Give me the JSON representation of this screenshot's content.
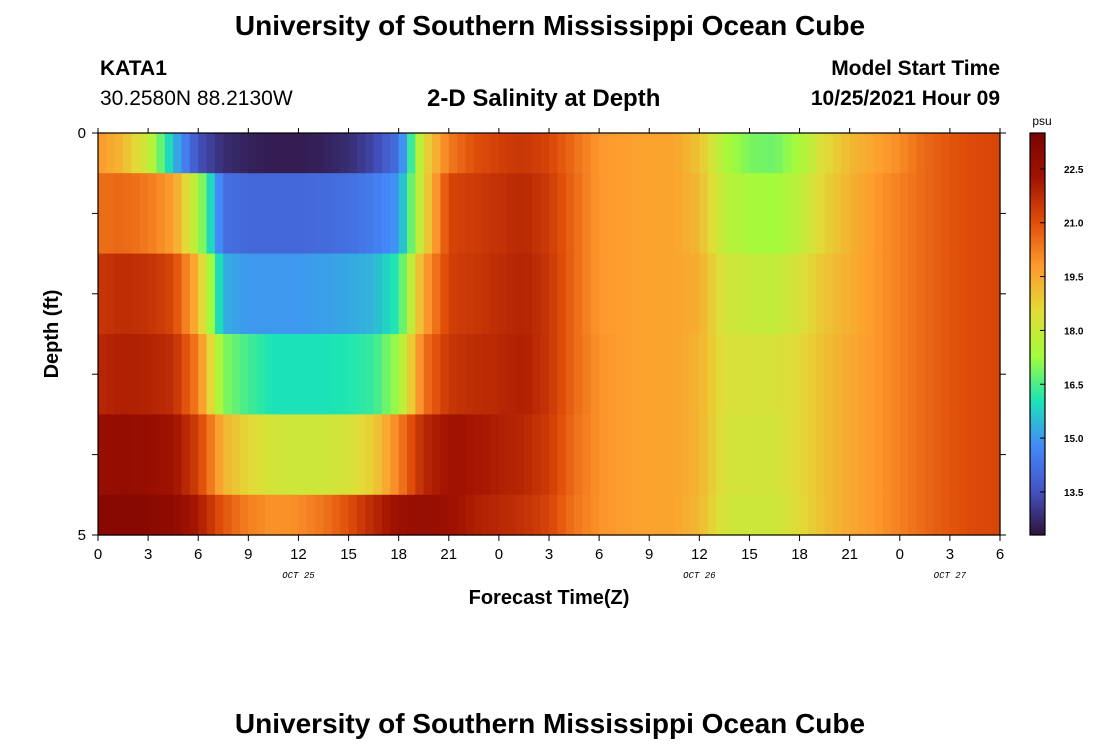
{
  "header": {
    "title": "University of Southern Mississippi Ocean Cube",
    "station": "KATA1",
    "coords": "30.2580N  88.2130W",
    "plot_title": "2-D Salinity at Depth",
    "model_label": "Model Start Time",
    "model_time": "10/25/2021 Hour 09"
  },
  "footer": {
    "title": "University of Southern Mississippi Ocean Cube"
  },
  "colors": {
    "scale": [
      "#30123b",
      "#4454c4",
      "#4489fa",
      "#1ae4b6",
      "#a2fc3c",
      "#e1dc37",
      "#fe9b2d",
      "#e04e0a",
      "#a11201",
      "#7a0403"
    ]
  },
  "chart_data": {
    "type": "heatmap",
    "title": "2-D Salinity at Depth",
    "xlabel": "Forecast Time(Z)",
    "ylabel": "Depth (ft)",
    "x_hours": [
      0,
      1.5,
      3,
      4.5,
      6,
      7.5,
      9,
      10.5,
      12,
      13.5,
      15,
      16.5,
      18,
      19.5,
      21,
      22.5,
      24,
      25.5,
      27,
      28.5,
      30,
      31.5,
      33,
      34.5,
      36,
      37.5,
      39,
      40.5,
      42,
      43.5,
      45,
      46.5,
      48,
      49.5,
      51,
      52.5,
      54
    ],
    "x_ticks": [
      {
        "h": 0,
        "label": "0"
      },
      {
        "h": 3,
        "label": "3"
      },
      {
        "h": 6,
        "label": "6"
      },
      {
        "h": 9,
        "label": "9"
      },
      {
        "h": 12,
        "label": "12"
      },
      {
        "h": 15,
        "label": "15"
      },
      {
        "h": 18,
        "label": "18"
      },
      {
        "h": 21,
        "label": "21"
      },
      {
        "h": 24,
        "label": "0"
      },
      {
        "h": 27,
        "label": "3"
      },
      {
        "h": 30,
        "label": "6"
      },
      {
        "h": 33,
        "label": "9"
      },
      {
        "h": 36,
        "label": "12"
      },
      {
        "h": 39,
        "label": "15"
      },
      {
        "h": 42,
        "label": "18"
      },
      {
        "h": 45,
        "label": "21"
      },
      {
        "h": 48,
        "label": "0"
      },
      {
        "h": 51,
        "label": "3"
      },
      {
        "h": 54,
        "label": "6"
      }
    ],
    "date_labels": [
      {
        "h": 12,
        "label": "OCT 25"
      },
      {
        "h": 36,
        "label": "OCT 26"
      },
      {
        "h": 51,
        "label": "OCT 27"
      }
    ],
    "xlim": [
      0,
      54
    ],
    "ylim": [
      0,
      5
    ],
    "y_tick_labels": [
      {
        "v": 0,
        "label": "0"
      },
      {
        "v": 5,
        "label": "5"
      }
    ],
    "y_minor_ticks": [
      1,
      2,
      3,
      4
    ],
    "depth_bins": [
      [
        0,
        0.5
      ],
      [
        0.5,
        1.5
      ],
      [
        1.5,
        2.5
      ],
      [
        2.5,
        3.5
      ],
      [
        3.5,
        4.5
      ],
      [
        4.5,
        5
      ]
    ],
    "values": [
      [
        19.8,
        19.2,
        18.0,
        15.5,
        13.5,
        12.8,
        12.6,
        12.5,
        12.5,
        12.6,
        12.8,
        13.3,
        14.2,
        18.5,
        20.3,
        21.0,
        21.3,
        21.5,
        21.2,
        20.5,
        19.8,
        19.7,
        19.6,
        19.6,
        19.0,
        17.5,
        16.9,
        16.8,
        17.4,
        18.5,
        19.2,
        19.6,
        20.0,
        20.6,
        20.9,
        21.1,
        21.2
      ],
      [
        20.5,
        20.6,
        20.3,
        19.7,
        17.5,
        14.2,
        14.0,
        14.0,
        14.0,
        14.1,
        14.2,
        14.5,
        15.0,
        18.5,
        21.2,
        21.4,
        21.6,
        21.8,
        21.4,
        20.6,
        19.8,
        19.7,
        19.6,
        19.6,
        19.2,
        17.8,
        17.4,
        17.3,
        17.8,
        18.7,
        19.3,
        19.8,
        20.2,
        20.6,
        20.9,
        21.1,
        21.2
      ],
      [
        21.5,
        21.7,
        21.6,
        21.2,
        19.2,
        15.3,
        15.0,
        15.0,
        15.0,
        15.1,
        15.2,
        15.4,
        16.2,
        19.6,
        21.3,
        21.5,
        21.7,
        21.9,
        21.5,
        20.6,
        19.8,
        19.7,
        19.6,
        19.6,
        19.4,
        18.2,
        18.0,
        17.9,
        18.3,
        19.0,
        19.4,
        19.8,
        20.2,
        20.6,
        20.9,
        21.1,
        21.2
      ],
      [
        21.8,
        22.0,
        21.9,
        21.7,
        20.2,
        17.0,
        16.4,
        16.0,
        16.0,
        16.0,
        16.1,
        16.3,
        17.3,
        20.4,
        21.5,
        21.7,
        21.8,
        22.0,
        21.5,
        20.6,
        19.9,
        19.7,
        19.6,
        19.6,
        19.3,
        18.4,
        18.3,
        18.3,
        18.6,
        19.1,
        19.5,
        19.8,
        20.2,
        20.6,
        20.9,
        21.1,
        21.2
      ],
      [
        22.5,
        22.7,
        22.6,
        22.3,
        21.3,
        19.3,
        18.6,
        18.2,
        18.1,
        18.1,
        18.3,
        18.8,
        20.2,
        21.8,
        22.3,
        22.2,
        22.0,
        21.8,
        21.4,
        20.5,
        19.9,
        19.7,
        19.6,
        19.6,
        19.3,
        18.3,
        18.2,
        18.2,
        18.6,
        19.1,
        19.5,
        19.8,
        20.2,
        20.6,
        20.9,
        21.1,
        21.2
      ],
      [
        23.0,
        23.1,
        23.0,
        22.8,
        22.1,
        20.9,
        20.2,
        19.9,
        20.0,
        20.4,
        21.0,
        21.8,
        22.4,
        22.6,
        22.4,
        22.0,
        21.8,
        21.6,
        21.2,
        20.4,
        19.9,
        19.7,
        19.6,
        19.6,
        19.2,
        18.2,
        18.1,
        18.1,
        18.5,
        19.1,
        19.5,
        19.8,
        20.2,
        20.6,
        20.9,
        21.1,
        21.2
      ]
    ],
    "colorbar": {
      "unit": "psu",
      "range": [
        12.3,
        23.5
      ],
      "ticks": [
        "13.5",
        "15.0",
        "16.5",
        "18.0",
        "19.5",
        "21.0",
        "22.5"
      ]
    }
  }
}
